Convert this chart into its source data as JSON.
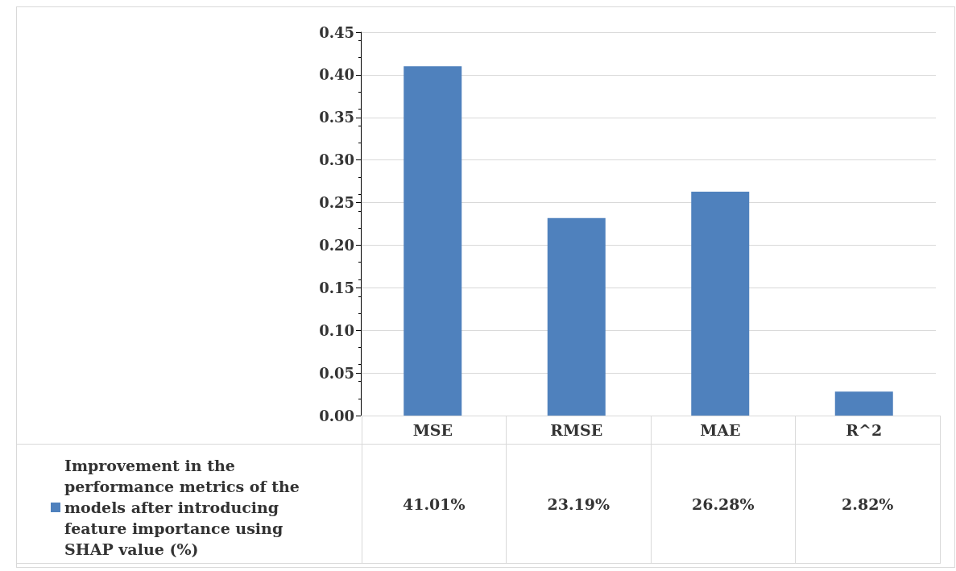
{
  "chart_data": {
    "type": "bar",
    "categories": [
      "MSE",
      "RMSE",
      "MAE",
      "R^2"
    ],
    "series": [
      {
        "name": "Improvement in the performance metrics of the models after introducing feature importance using SHAP value (%)",
        "color": "#4f81bd",
        "values": [
          0.4101,
          0.2319,
          0.2628,
          0.0282
        ],
        "value_labels": [
          "41.01%",
          "23.19%",
          "26.28%",
          "2.82%"
        ]
      }
    ],
    "ylim": [
      0,
      0.45
    ],
    "yticks": [
      {
        "value": 0,
        "label": "0.00"
      },
      {
        "value": 0.05,
        "label": "0.05"
      },
      {
        "value": 0.1,
        "label": "0.10"
      },
      {
        "value": 0.15,
        "label": "0.15"
      },
      {
        "value": 0.2,
        "label": "0.20"
      },
      {
        "value": 0.25,
        "label": "0.25"
      },
      {
        "value": 0.3,
        "label": "0.30"
      },
      {
        "value": 0.35,
        "label": "0.35"
      },
      {
        "value": 0.4,
        "label": "0.40"
      },
      {
        "value": 0.45,
        "label": "0.45"
      }
    ],
    "grid": "y",
    "legend": "bottom left"
  }
}
